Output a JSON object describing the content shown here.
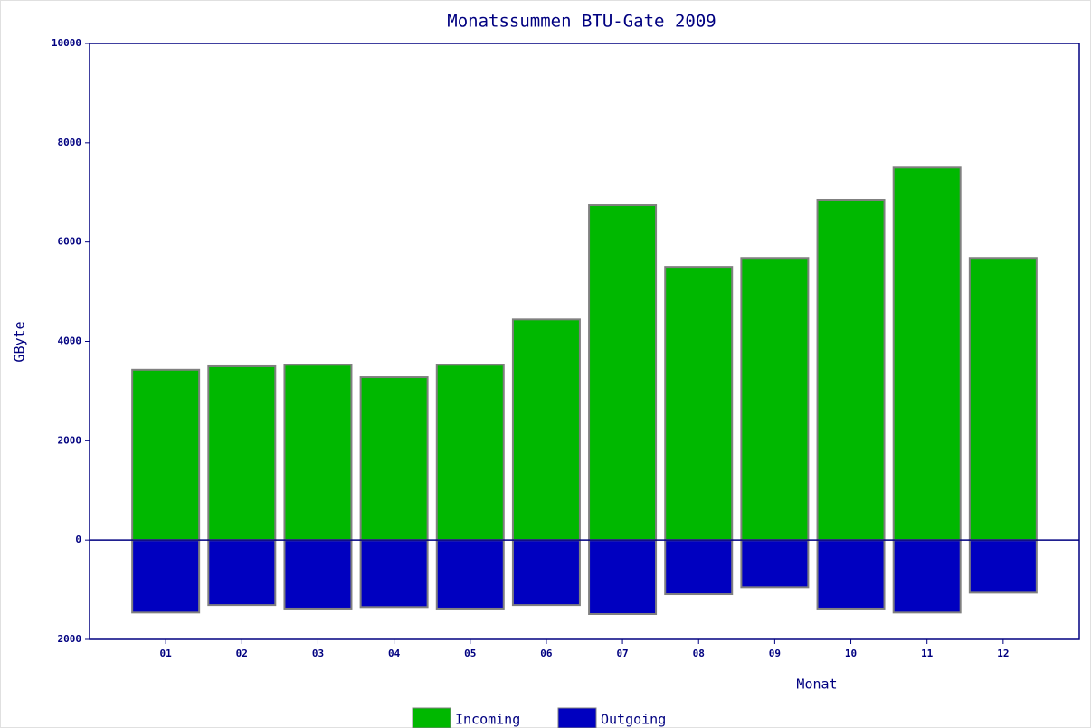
{
  "chart_data": {
    "type": "bar",
    "title": "Monatssummen BTU-Gate 2009",
    "x_label": "Monat",
    "y_label": "GByte",
    "categories": [
      "01",
      "02",
      "03",
      "04",
      "05",
      "06",
      "07",
      "08",
      "09",
      "10",
      "11",
      "12"
    ],
    "series": [
      {
        "name": "Incoming",
        "color": "#00b800",
        "values": [
          3430,
          3500,
          3530,
          3280,
          3530,
          4440,
          6740,
          5500,
          5680,
          6850,
          7500,
          5680
        ]
      },
      {
        "name": "Outgoing",
        "color": "#0000c0",
        "values": [
          -1460,
          -1310,
          -1380,
          -1350,
          -1380,
          -1310,
          -1490,
          -1090,
          -950,
          -1380,
          -1460,
          -1060
        ]
      }
    ],
    "ylim": [
      -2000,
      10000
    ],
    "yticks": [
      {
        "value": -2000,
        "label": "2000"
      },
      0,
      2000,
      4000,
      6000,
      8000,
      10000
    ]
  }
}
